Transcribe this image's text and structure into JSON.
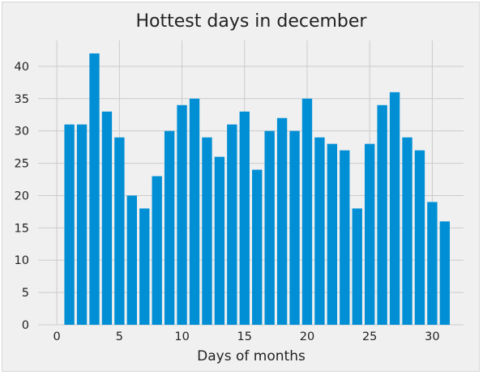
{
  "chart_data": {
    "type": "bar",
    "title": "Hottest days in december",
    "xlabel": "Days of months",
    "ylabel": "",
    "x": [
      1,
      2,
      3,
      4,
      5,
      6,
      7,
      8,
      9,
      10,
      11,
      12,
      13,
      14,
      15,
      16,
      17,
      18,
      19,
      20,
      21,
      22,
      23,
      24,
      25,
      26,
      27,
      28,
      29,
      30,
      31
    ],
    "values": [
      31,
      31,
      42,
      33,
      29,
      20,
      18,
      23,
      30,
      34,
      35,
      29,
      26,
      31,
      33,
      24,
      30,
      32,
      30,
      35,
      29,
      28,
      27,
      18,
      28,
      34,
      36,
      29,
      27,
      19,
      16
    ],
    "xlim": [
      -1.5,
      32.5
    ],
    "ylim": [
      0,
      44
    ],
    "xticks": [
      0,
      5,
      10,
      15,
      20,
      25,
      30
    ],
    "yticks": [
      0,
      5,
      10,
      15,
      20,
      25,
      30,
      35,
      40
    ],
    "grid": true,
    "bar_color": "#008fd5",
    "background_color": "#f0f0f0",
    "grid_color": "#cbcbcb"
  }
}
